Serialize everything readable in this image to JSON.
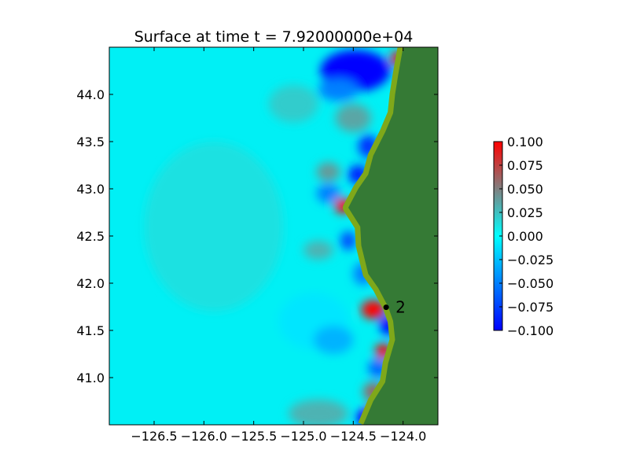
{
  "chart_data": {
    "type": "heatmap",
    "title": "Surface at time t = 7.92000000e+04",
    "xlabel": "",
    "ylabel": "",
    "xlim": [
      -126.95,
      -123.65
    ],
    "ylim": [
      40.5,
      44.5
    ],
    "x_ticks": [
      -126.5,
      -126.0,
      -125.5,
      -125.0,
      -124.5,
      -124.0
    ],
    "x_tick_labels": [
      "−126.5",
      "−126.0",
      "−125.5",
      "−125.0",
      "−124.5",
      "−124.0"
    ],
    "y_ticks": [
      41.0,
      41.5,
      42.0,
      42.5,
      43.0,
      43.5,
      44.0
    ],
    "y_tick_labels": [
      "41.0",
      "41.5",
      "42.0",
      "42.5",
      "43.0",
      "43.5",
      "44.0"
    ],
    "colorbar": {
      "min": -0.1,
      "max": 0.1,
      "ticks": [
        0.1,
        0.075,
        0.05,
        0.025,
        0.0,
        -0.025,
        -0.05,
        -0.075,
        -0.1
      ],
      "tick_labels": [
        "0.100",
        "0.075",
        "0.050",
        "0.025",
        "0.000",
        "−0.025",
        "−0.050",
        "−0.075",
        "−0.100"
      ],
      "colors": [
        "#0000ff",
        "#00ffff",
        "#808080",
        "#ff0000"
      ]
    },
    "land_color": "#357a35",
    "shore_vegetation_color": "#7fa81a",
    "coastline": [
      [
        -124.0,
        44.5
      ],
      [
        -124.05,
        44.2
      ],
      [
        -124.08,
        44.0
      ],
      [
        -124.1,
        43.8
      ],
      [
        -124.18,
        43.6
      ],
      [
        -124.3,
        43.35
      ],
      [
        -124.35,
        43.15
      ],
      [
        -124.45,
        43.0
      ],
      [
        -124.55,
        42.8
      ],
      [
        -124.43,
        42.6
      ],
      [
        -124.42,
        42.4
      ],
      [
        -124.35,
        42.1
      ],
      [
        -124.25,
        41.95
      ],
      [
        -124.15,
        41.75
      ],
      [
        -124.1,
        41.6
      ],
      [
        -124.08,
        41.4
      ],
      [
        -124.15,
        41.15
      ],
      [
        -124.18,
        40.95
      ],
      [
        -124.3,
        40.75
      ],
      [
        -124.4,
        40.5
      ]
    ],
    "anomalies": [
      {
        "x": -124.48,
        "y": 44.25,
        "value": -0.1,
        "rx": 0.35,
        "ry": 0.22
      },
      {
        "x": -124.65,
        "y": 44.05,
        "value": -0.05,
        "rx": 0.2,
        "ry": 0.12
      },
      {
        "x": -124.05,
        "y": 44.38,
        "value": 0.09,
        "rx": 0.08,
        "ry": 0.08
      },
      {
        "x": -125.1,
        "y": 43.9,
        "value": 0.02,
        "rx": 0.25,
        "ry": 0.2
      },
      {
        "x": -124.5,
        "y": 43.75,
        "value": 0.035,
        "rx": 0.18,
        "ry": 0.15
      },
      {
        "x": -124.35,
        "y": 43.45,
        "value": -0.08,
        "rx": 0.1,
        "ry": 0.12
      },
      {
        "x": -124.45,
        "y": 43.15,
        "value": -0.09,
        "rx": 0.1,
        "ry": 0.1
      },
      {
        "x": -124.75,
        "y": 43.18,
        "value": 0.04,
        "rx": 0.12,
        "ry": 0.1
      },
      {
        "x": -124.6,
        "y": 42.82,
        "value": 0.1,
        "rx": 0.09,
        "ry": 0.08
      },
      {
        "x": -124.75,
        "y": 42.95,
        "value": -0.05,
        "rx": 0.12,
        "ry": 0.1
      },
      {
        "x": -124.55,
        "y": 42.45,
        "value": -0.07,
        "rx": 0.08,
        "ry": 0.1
      },
      {
        "x": -124.85,
        "y": 42.35,
        "value": 0.03,
        "rx": 0.15,
        "ry": 0.1
      },
      {
        "x": -124.4,
        "y": 42.1,
        "value": -0.05,
        "rx": 0.1,
        "ry": 0.12
      },
      {
        "x": -124.3,
        "y": 41.72,
        "value": 0.1,
        "rx": 0.12,
        "ry": 0.1
      },
      {
        "x": -124.15,
        "y": 41.55,
        "value": -0.1,
        "rx": 0.08,
        "ry": 0.1
      },
      {
        "x": -124.2,
        "y": 41.28,
        "value": 0.1,
        "rx": 0.08,
        "ry": 0.08
      },
      {
        "x": -124.25,
        "y": 41.1,
        "value": -0.06,
        "rx": 0.1,
        "ry": 0.1
      },
      {
        "x": -124.3,
        "y": 40.85,
        "value": 0.06,
        "rx": 0.1,
        "ry": 0.1
      },
      {
        "x": -124.3,
        "y": 40.65,
        "value": 0.1,
        "rx": 0.08,
        "ry": 0.06
      },
      {
        "x": -124.38,
        "y": 40.58,
        "value": -0.1,
        "rx": 0.1,
        "ry": 0.08
      },
      {
        "x": -124.85,
        "y": 40.62,
        "value": 0.03,
        "rx": 0.3,
        "ry": 0.15
      },
      {
        "x": -125.9,
        "y": 42.6,
        "value": 0.012,
        "rx": 0.7,
        "ry": 0.9
      },
      {
        "x": -124.9,
        "y": 41.6,
        "value": -0.01,
        "rx": 0.35,
        "ry": 0.3
      },
      {
        "x": -124.7,
        "y": 41.4,
        "value": -0.03,
        "rx": 0.2,
        "ry": 0.15
      }
    ],
    "gauges": [
      {
        "label": "2",
        "x": -124.17,
        "y": 41.745
      }
    ]
  }
}
